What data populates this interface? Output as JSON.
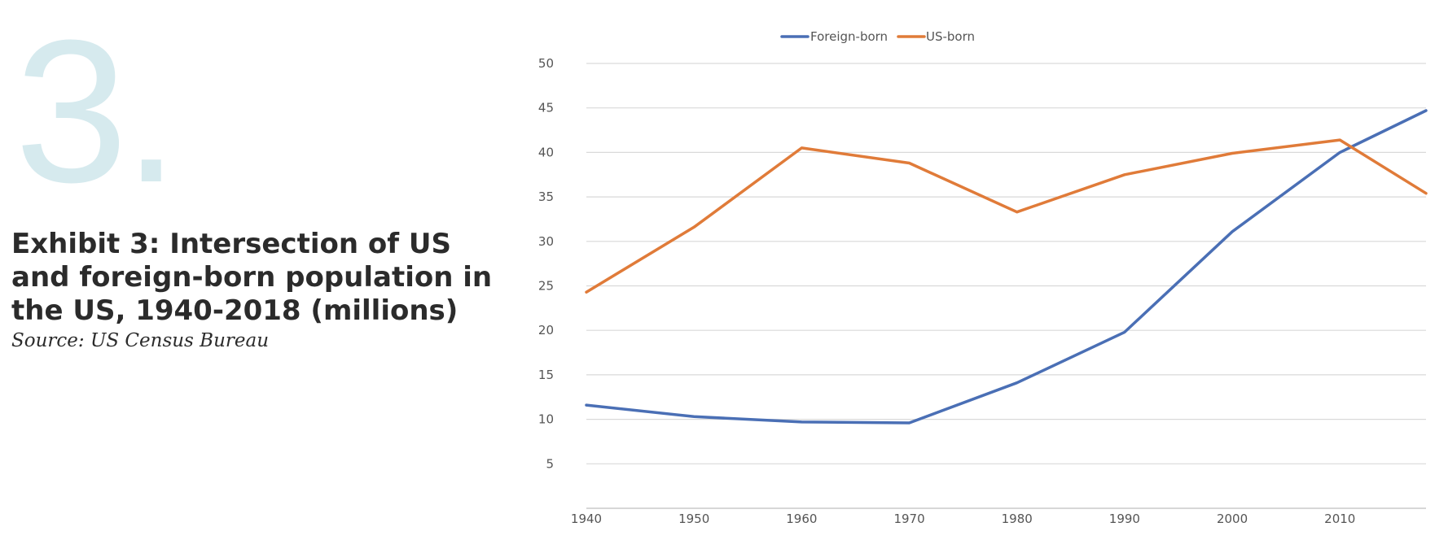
{
  "header": {
    "number": "3.",
    "title": "Exhibit 3: Intersection of US and foreign-born population in the US, 1940-2018 (millions)",
    "source": "Source: US Census Bureau"
  },
  "colors": {
    "foreign_born": "#4a6fb5",
    "us_born": "#e07b39",
    "grid": "#d9d9d9",
    "big_number": "#d6eaee"
  },
  "chart_data": {
    "type": "line",
    "x": [
      1940,
      1950,
      1960,
      1970,
      1980,
      1990,
      2000,
      2010,
      2018
    ],
    "series": [
      {
        "name": "Foreign-born",
        "values": [
          11.6,
          10.3,
          9.7,
          9.6,
          14.1,
          19.8,
          31.1,
          40.0,
          44.7
        ]
      },
      {
        "name": "US-born",
        "values": [
          24.3,
          31.6,
          40.5,
          38.8,
          33.3,
          37.5,
          39.9,
          41.4,
          35.4
        ]
      }
    ],
    "x_ticks": [
      "1940",
      "1950",
      "1960",
      "1970",
      "1980",
      "1990",
      "2000",
      "2010"
    ],
    "y_ticks": [
      "5",
      "10",
      "15",
      "20",
      "25",
      "30",
      "35",
      "40",
      "45",
      "50"
    ],
    "xlim": [
      1940,
      2018
    ],
    "ylim": [
      0,
      50
    ],
    "grid": true,
    "legend_position": "top-center",
    "title": "",
    "xlabel": "",
    "ylabel": ""
  }
}
